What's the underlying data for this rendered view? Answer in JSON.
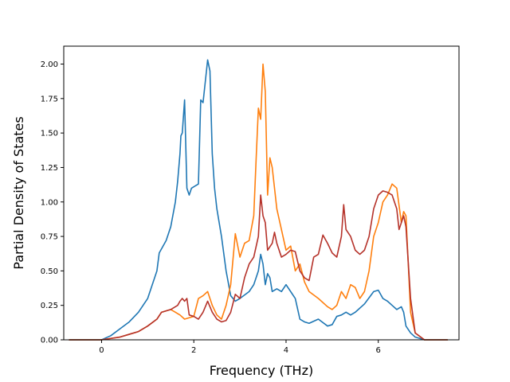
{
  "chart_data": {
    "type": "line",
    "title": "",
    "xlabel": "Frequency (THz)",
    "ylabel": "Partial Density of States",
    "xlim": [
      -0.82,
      7.75
    ],
    "ylim": [
      0.0,
      2.13
    ],
    "xticks": [
      0,
      2,
      4,
      6
    ],
    "xtick_labels": [
      "0",
      "2",
      "4",
      "6"
    ],
    "yticks": [
      0.0,
      0.25,
      0.5,
      0.75,
      1.0,
      1.25,
      1.5,
      1.75,
      2.0
    ],
    "ytick_labels": [
      "0.00",
      "0.25",
      "0.50",
      "0.75",
      "1.00",
      "1.25",
      "1.50",
      "1.75",
      "2.00"
    ],
    "grid": false,
    "series": [
      {
        "color": "#1f77b4",
        "x": [
          -0.7,
          0.0,
          0.2,
          0.4,
          0.6,
          0.8,
          1.0,
          1.2,
          1.25,
          1.4,
          1.5,
          1.6,
          1.65,
          1.7,
          1.72,
          1.75,
          1.8,
          1.85,
          1.9,
          1.95,
          2.1,
          2.15,
          2.2,
          2.3,
          2.35,
          2.4,
          2.45,
          2.5,
          2.6,
          2.7,
          2.8,
          2.9,
          3.0,
          3.2,
          3.3,
          3.4,
          3.45,
          3.5,
          3.55,
          3.6,
          3.65,
          3.7,
          3.8,
          3.9,
          4.0,
          4.1,
          4.2,
          4.3,
          4.4,
          4.5,
          4.7,
          4.9,
          5.0,
          5.1,
          5.2,
          5.3,
          5.4,
          5.5,
          5.7,
          5.9,
          6.0,
          6.1,
          6.2,
          6.3,
          6.4,
          6.5,
          6.55,
          6.6,
          6.7,
          6.8,
          7.0,
          7.5
        ],
        "y": [
          0.0,
          0.0,
          0.03,
          0.08,
          0.13,
          0.2,
          0.3,
          0.5,
          0.63,
          0.72,
          0.82,
          1.0,
          1.15,
          1.35,
          1.48,
          1.5,
          1.74,
          1.1,
          1.05,
          1.1,
          1.13,
          1.74,
          1.72,
          2.03,
          1.95,
          1.35,
          1.1,
          0.95,
          0.75,
          0.5,
          0.32,
          0.28,
          0.3,
          0.35,
          0.4,
          0.5,
          0.62,
          0.55,
          0.4,
          0.48,
          0.45,
          0.35,
          0.37,
          0.35,
          0.4,
          0.35,
          0.3,
          0.15,
          0.13,
          0.12,
          0.15,
          0.1,
          0.11,
          0.17,
          0.18,
          0.2,
          0.18,
          0.2,
          0.26,
          0.35,
          0.36,
          0.3,
          0.28,
          0.25,
          0.22,
          0.24,
          0.2,
          0.1,
          0.05,
          0.02,
          0.0,
          0.0
        ]
      },
      {
        "color": "#ff7f0e",
        "x": [
          -0.7,
          0.0,
          0.2,
          0.4,
          0.6,
          0.8,
          1.0,
          1.2,
          1.3,
          1.5,
          1.6,
          1.7,
          1.8,
          1.9,
          2.0,
          2.1,
          2.2,
          2.3,
          2.4,
          2.5,
          2.6,
          2.7,
          2.8,
          2.9,
          3.0,
          3.1,
          3.2,
          3.3,
          3.35,
          3.4,
          3.45,
          3.5,
          3.55,
          3.6,
          3.65,
          3.7,
          3.8,
          3.9,
          4.0,
          4.1,
          4.2,
          4.3,
          4.4,
          4.5,
          4.7,
          4.9,
          5.0,
          5.1,
          5.2,
          5.3,
          5.4,
          5.5,
          5.6,
          5.7,
          5.8,
          5.9,
          6.0,
          6.1,
          6.2,
          6.3,
          6.4,
          6.5,
          6.55,
          6.6,
          6.7,
          6.8,
          7.0,
          7.5
        ],
        "y": [
          0.0,
          0.0,
          0.01,
          0.02,
          0.04,
          0.06,
          0.1,
          0.15,
          0.2,
          0.22,
          0.2,
          0.18,
          0.15,
          0.16,
          0.17,
          0.3,
          0.32,
          0.35,
          0.25,
          0.18,
          0.15,
          0.25,
          0.4,
          0.77,
          0.6,
          0.7,
          0.72,
          0.9,
          1.3,
          1.68,
          1.6,
          2.0,
          1.8,
          1.05,
          1.32,
          1.25,
          0.95,
          0.8,
          0.65,
          0.68,
          0.5,
          0.55,
          0.42,
          0.35,
          0.3,
          0.24,
          0.22,
          0.25,
          0.35,
          0.3,
          0.4,
          0.38,
          0.3,
          0.35,
          0.5,
          0.75,
          0.85,
          1.0,
          1.05,
          1.13,
          1.1,
          0.85,
          0.93,
          0.9,
          0.2,
          0.05,
          0.0,
          0.0
        ]
      },
      {
        "color": "#b5322a",
        "x": [
          -0.7,
          0.0,
          0.2,
          0.4,
          0.6,
          0.8,
          1.0,
          1.2,
          1.3,
          1.5,
          1.65,
          1.7,
          1.75,
          1.8,
          1.85,
          1.9,
          2.0,
          2.1,
          2.2,
          2.3,
          2.4,
          2.5,
          2.6,
          2.7,
          2.8,
          2.9,
          3.0,
          3.1,
          3.2,
          3.3,
          3.4,
          3.45,
          3.5,
          3.55,
          3.6,
          3.7,
          3.75,
          3.8,
          3.9,
          4.0,
          4.1,
          4.2,
          4.3,
          4.4,
          4.5,
          4.6,
          4.7,
          4.8,
          4.9,
          5.0,
          5.1,
          5.2,
          5.25,
          5.3,
          5.4,
          5.5,
          5.6,
          5.7,
          5.8,
          5.9,
          6.0,
          6.1,
          6.2,
          6.3,
          6.4,
          6.45,
          6.5,
          6.55,
          6.6,
          6.7,
          6.8,
          7.0,
          7.5
        ],
        "y": [
          0.0,
          0.0,
          0.01,
          0.02,
          0.04,
          0.06,
          0.1,
          0.15,
          0.2,
          0.22,
          0.25,
          0.28,
          0.3,
          0.28,
          0.3,
          0.18,
          0.17,
          0.15,
          0.2,
          0.28,
          0.2,
          0.15,
          0.13,
          0.14,
          0.2,
          0.33,
          0.3,
          0.45,
          0.55,
          0.6,
          0.75,
          1.05,
          0.9,
          0.85,
          0.65,
          0.7,
          0.78,
          0.7,
          0.6,
          0.62,
          0.65,
          0.64,
          0.5,
          0.45,
          0.43,
          0.6,
          0.62,
          0.76,
          0.7,
          0.63,
          0.6,
          0.75,
          0.98,
          0.8,
          0.75,
          0.65,
          0.62,
          0.65,
          0.75,
          0.95,
          1.05,
          1.08,
          1.07,
          1.05,
          0.95,
          0.8,
          0.85,
          0.9,
          0.82,
          0.3,
          0.05,
          0.0,
          0.0
        ]
      }
    ]
  }
}
